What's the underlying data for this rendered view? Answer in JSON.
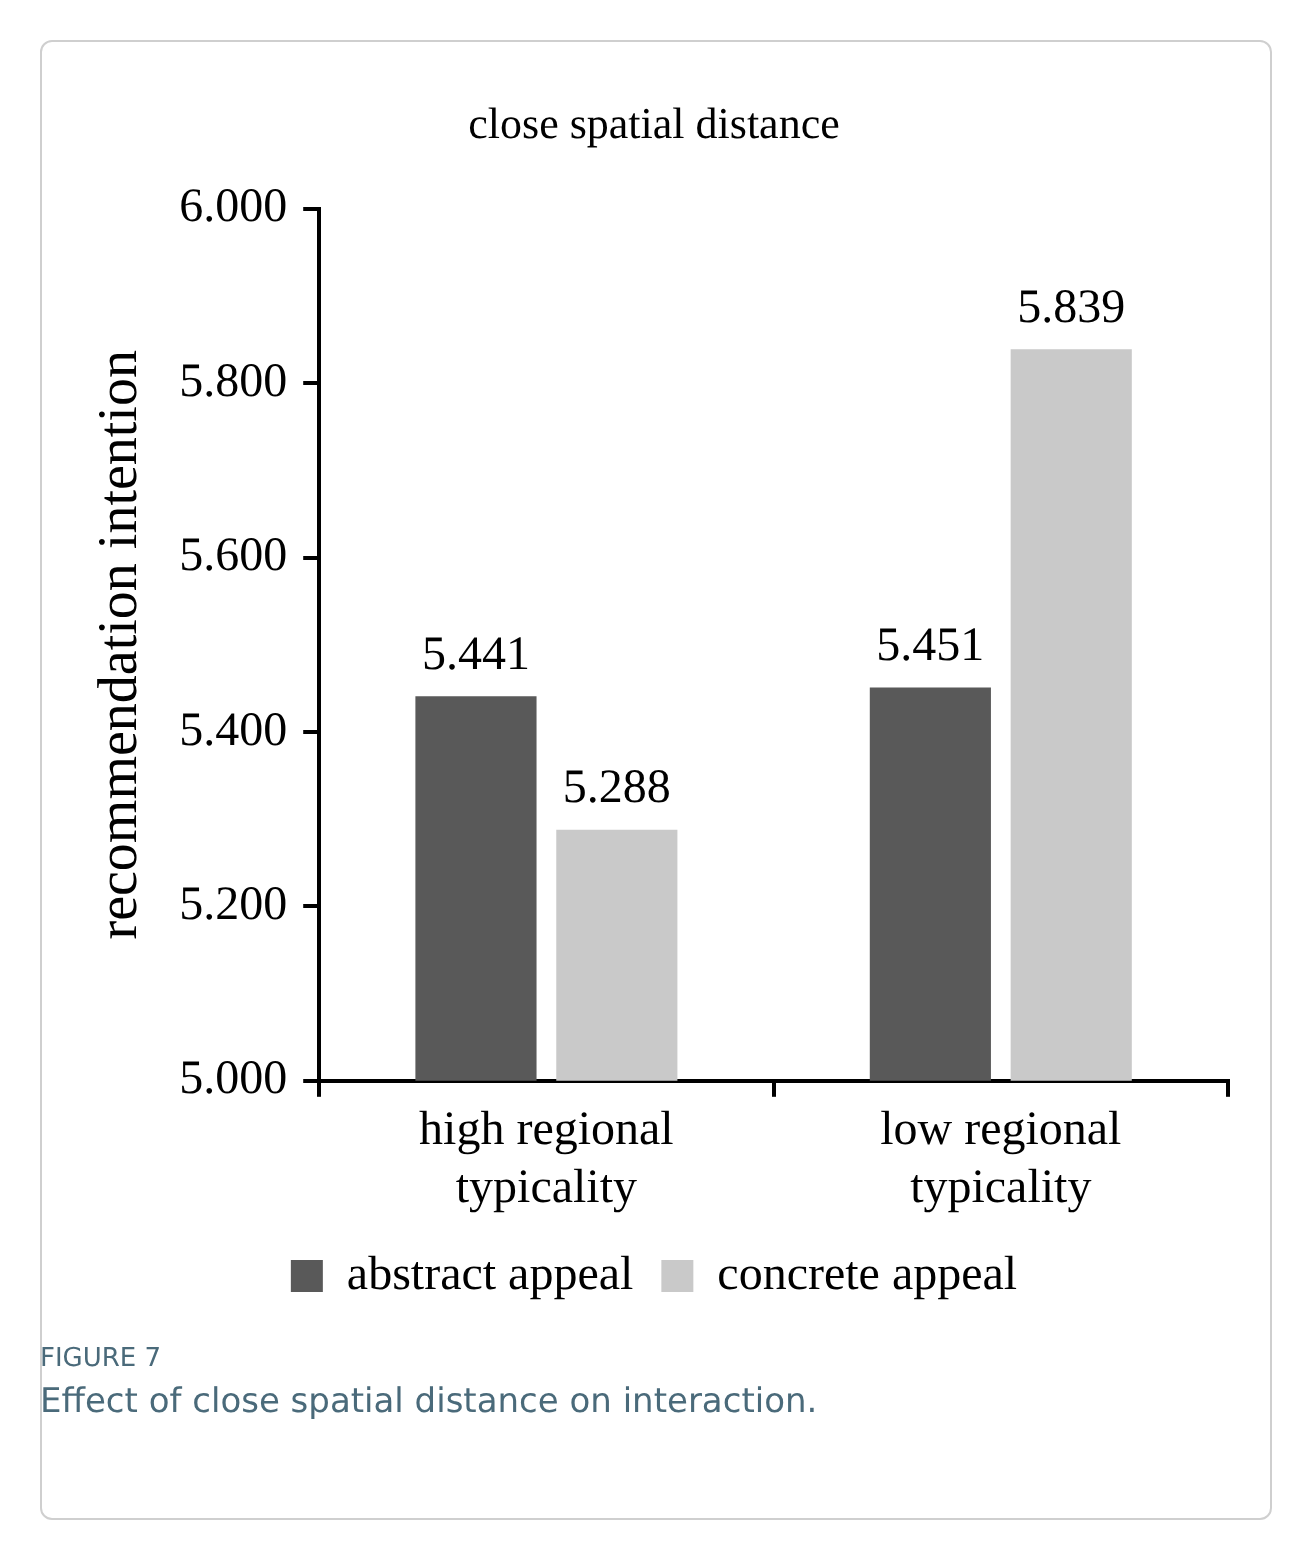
{
  "chart_data": {
    "type": "bar",
    "title": "close spatial distance",
    "ylabel": "recommendation intention",
    "categories": [
      "high regional typicality",
      "low regional typicality"
    ],
    "series": [
      {
        "name": "abstract appeal",
        "color": "#595959",
        "values": [
          5.441,
          5.451
        ]
      },
      {
        "name": "concrete appeal",
        "color": "#c9c9c9",
        "values": [
          5.288,
          5.839
        ]
      }
    ],
    "ylim": [
      5,
      6
    ],
    "yticks": [
      {
        "value": 5,
        "label": "5.000"
      },
      {
        "value": 5.2,
        "label": "5.200"
      },
      {
        "value": 5.4,
        "label": "5.400"
      },
      {
        "value": 5.6,
        "label": "5.600"
      },
      {
        "value": 5.8,
        "label": "5.800"
      },
      {
        "value": 6,
        "label": "6.000"
      }
    ],
    "data_labels": true,
    "grid": false,
    "legend": "bottom",
    "annotations": [
      "FIGURE 7",
      "Effect of close spatial distance on interaction."
    ]
  }
}
